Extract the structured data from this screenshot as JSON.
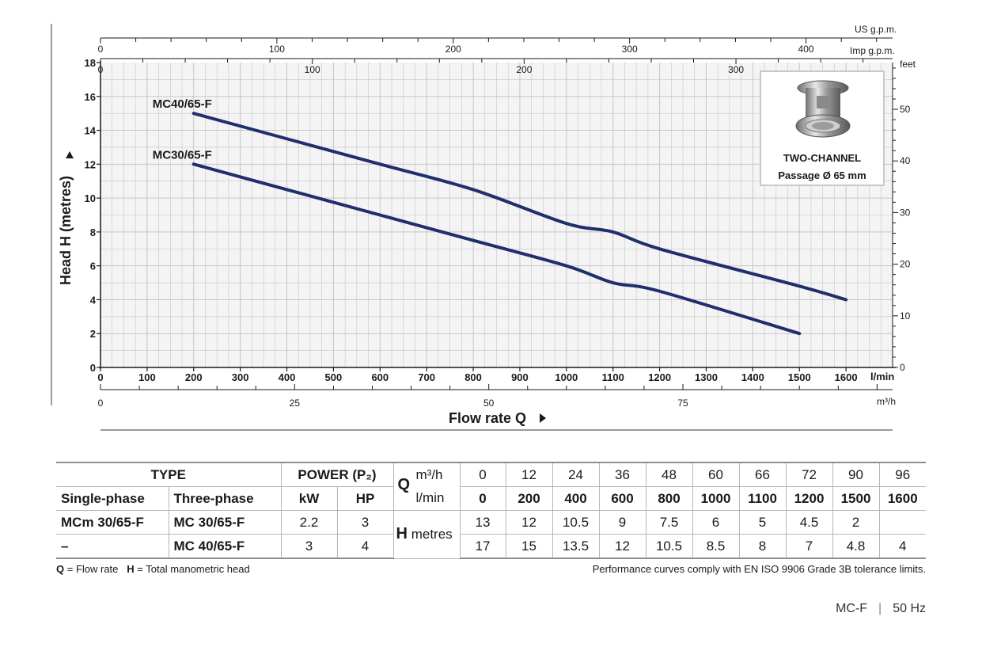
{
  "chart_data": {
    "type": "line",
    "x_unit": "l/min",
    "xlim": [
      0,
      1700
    ],
    "ylim": [
      0,
      18
    ],
    "x_ticks": [
      0,
      100,
      200,
      300,
      400,
      500,
      600,
      700,
      800,
      900,
      1000,
      1100,
      1200,
      1300,
      1400,
      1500,
      1600
    ],
    "y_ticks": [
      0,
      2,
      4,
      6,
      8,
      10,
      12,
      14,
      16,
      18
    ],
    "grid": true,
    "xlabel": "Flow rate Q",
    "ylabel": "Head H (metres)",
    "series": [
      {
        "name": "MC40/65-F",
        "x": [
          200,
          400,
          600,
          800,
          1000,
          1100,
          1200,
          1500,
          1600
        ],
        "y": [
          15,
          13.5,
          12,
          10.5,
          8.5,
          8,
          7,
          4.8,
          4
        ]
      },
      {
        "name": "MC30/65-F",
        "x": [
          200,
          400,
          600,
          800,
          1000,
          1100,
          1200,
          1500
        ],
        "y": [
          12,
          10.5,
          9,
          7.5,
          6,
          5,
          4.5,
          2
        ]
      }
    ],
    "secondary_axes": {
      "us_gpm": {
        "label": "US g.p.m.",
        "ticks": [
          "0",
          "100",
          "200",
          "300",
          "400"
        ]
      },
      "imp_gpm": {
        "label": "Imp g.p.m.",
        "ticks": [
          "0",
          "100",
          "200",
          "300"
        ]
      },
      "feet": {
        "label": "feet",
        "ticks": [
          "0",
          "10",
          "20",
          "30",
          "40",
          "50"
        ]
      },
      "m3h": {
        "label": "m³/h",
        "ticks": [
          "0",
          "25",
          "50",
          "75"
        ]
      }
    },
    "x_unit_label": "l/min"
  },
  "info_box": {
    "line1": "TWO-CHANNEL",
    "line2": "Passage Ø 65 mm"
  },
  "table": {
    "type_header": "TYPE",
    "power_header": "POWER (P₂)",
    "single_phase": "Single-phase",
    "three_phase": "Three-phase",
    "kw": "kW",
    "hp": "HP",
    "q_label": "Q",
    "m3h_label": "m³/h",
    "lmin_label": "l/min",
    "h_label": "H",
    "metres_label": "metres",
    "q_m3h": [
      "0",
      "12",
      "24",
      "36",
      "48",
      "60",
      "66",
      "72",
      "90",
      "96"
    ],
    "q_lmin": [
      "0",
      "200",
      "400",
      "600",
      "800",
      "1000",
      "1100",
      "1200",
      "1500",
      "1600"
    ],
    "rows": [
      {
        "single": "MCm 30/65-F",
        "three": "MC 30/65-F",
        "kw": "2.2",
        "hp": "3",
        "h": [
          "13",
          "12",
          "10.5",
          "9",
          "7.5",
          "6",
          "5",
          "4.5",
          "2",
          ""
        ]
      },
      {
        "single": "–",
        "three": "MC 40/65-F",
        "kw": "3",
        "hp": "4",
        "h": [
          "17",
          "15",
          "13.5",
          "12",
          "10.5",
          "8.5",
          "8",
          "7",
          "4.8",
          "4"
        ]
      }
    ]
  },
  "footer": {
    "q_key": "Q",
    "q_def": " = Flow rate",
    "h_key": "H",
    "h_def": " = Total manometric head",
    "note": "Performance curves comply with EN ISO 9906 Grade 3B tolerance limits.",
    "model": "MC-F",
    "freq": "50 Hz"
  },
  "colors": {
    "curve": "#1f2f6b",
    "grid": "#c6c6c6",
    "plot_bg": "#f4f4f4"
  }
}
